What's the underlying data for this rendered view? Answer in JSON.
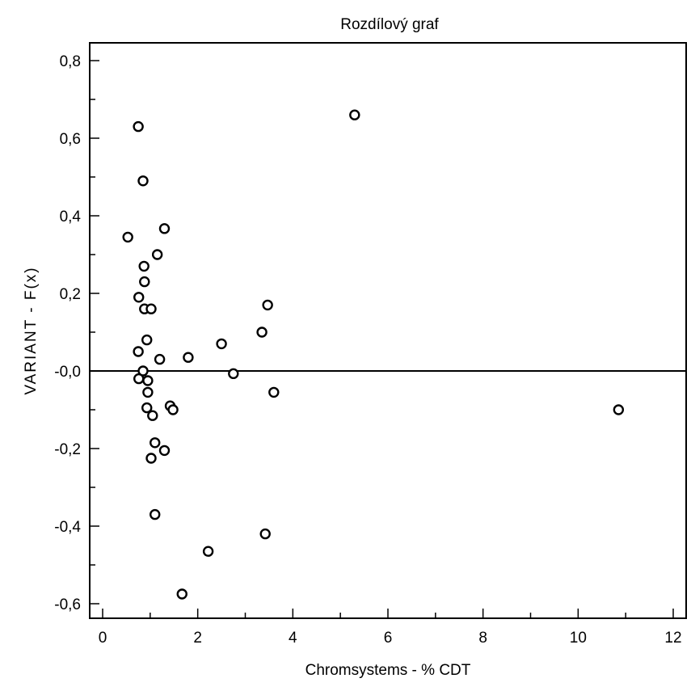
{
  "chart_data": {
    "type": "scatter",
    "title": "Rozdílový graf",
    "xlabel": "Chromsystems  - % CDT",
    "ylabel": "VARIANT - F(x)",
    "xlim": [
      -0.25,
      12.25
    ],
    "ylim": [
      -0.63,
      0.85
    ],
    "x_ticks": [
      0,
      2,
      4,
      6,
      8,
      10,
      12
    ],
    "x_tick_labels": [
      "0",
      "2",
      "4",
      "6",
      "8",
      "10",
      "12"
    ],
    "y_ticks": [
      0.8,
      0.6,
      0.4,
      0.2,
      0.0,
      -0.2,
      -0.4,
      -0.6
    ],
    "y_tick_labels": [
      "0,8",
      "0,6",
      "0,4",
      "0,2",
      "-0,0",
      "-0,2",
      "-0,4",
      "-0,6"
    ],
    "reference_line_y": 0,
    "grid": false,
    "marker": "open-circle",
    "series": [
      {
        "points": [
          {
            "x": 0.75,
            "y": 0.63
          },
          {
            "x": 0.85,
            "y": 0.49
          },
          {
            "x": 0.53,
            "y": 0.345
          },
          {
            "x": 1.3,
            "y": 0.367
          },
          {
            "x": 0.87,
            "y": 0.27
          },
          {
            "x": 1.15,
            "y": 0.3
          },
          {
            "x": 0.88,
            "y": 0.23
          },
          {
            "x": 0.76,
            "y": 0.19
          },
          {
            "x": 0.88,
            "y": 0.16
          },
          {
            "x": 1.02,
            "y": 0.16
          },
          {
            "x": 0.93,
            "y": 0.08
          },
          {
            "x": 0.75,
            "y": 0.05
          },
          {
            "x": 1.2,
            "y": 0.03
          },
          {
            "x": 1.8,
            "y": 0.035
          },
          {
            "x": 2.5,
            "y": 0.07
          },
          {
            "x": 3.35,
            "y": 0.1
          },
          {
            "x": 3.47,
            "y": 0.17
          },
          {
            "x": 5.3,
            "y": 0.66
          },
          {
            "x": 0.85,
            "y": 0.0
          },
          {
            "x": 0.76,
            "y": -0.02
          },
          {
            "x": 0.95,
            "y": -0.025
          },
          {
            "x": 2.75,
            "y": -0.007
          },
          {
            "x": 0.95,
            "y": -0.055
          },
          {
            "x": 3.6,
            "y": -0.055
          },
          {
            "x": 0.93,
            "y": -0.095
          },
          {
            "x": 1.05,
            "y": -0.115
          },
          {
            "x": 1.42,
            "y": -0.09
          },
          {
            "x": 1.48,
            "y": -0.1
          },
          {
            "x": 1.1,
            "y": -0.185
          },
          {
            "x": 1.3,
            "y": -0.205
          },
          {
            "x": 1.02,
            "y": -0.225
          },
          {
            "x": 1.1,
            "y": -0.37
          },
          {
            "x": 3.42,
            "y": -0.42
          },
          {
            "x": 2.22,
            "y": -0.465
          },
          {
            "x": 1.67,
            "y": -0.575
          },
          {
            "x": 10.85,
            "y": -0.1
          }
        ]
      }
    ]
  }
}
